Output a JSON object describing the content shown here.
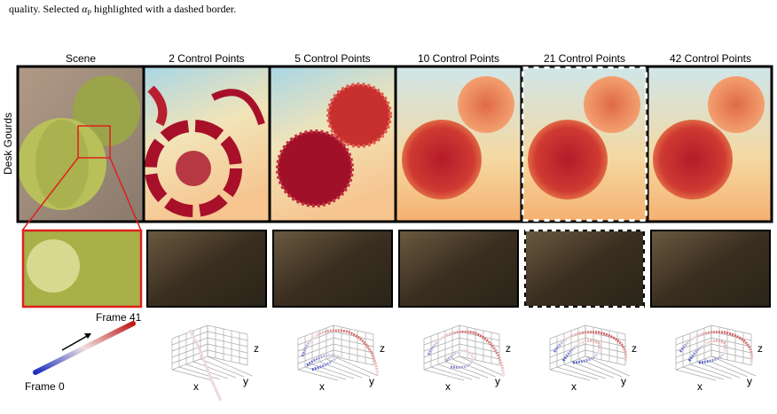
{
  "caption": {
    "text_before": "quality. Selected ",
    "symbol": "α",
    "subscript": "P",
    "text_after": " highlighted with a dashed border."
  },
  "columns": [
    "Scene",
    "2 Control Points",
    "5 Control Points",
    "10 Control Points",
    "21 Control Points",
    "42 Control Points"
  ],
  "row_label": "Desk Gourds",
  "legend": {
    "end": "Frame 41",
    "start": "Frame 0"
  },
  "axis_labels": {
    "x": "x",
    "y": "y",
    "z": "z"
  }
}
